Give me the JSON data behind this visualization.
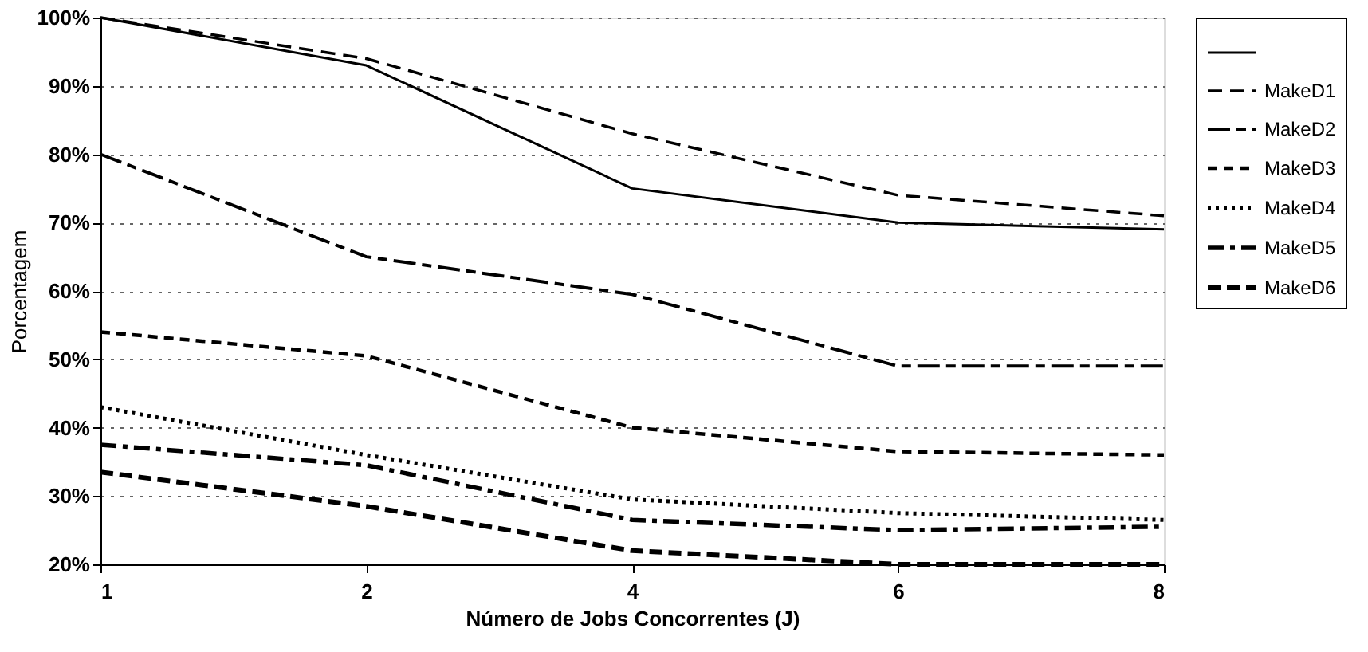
{
  "chart_data": {
    "type": "line",
    "xlabel": "Número de Jobs Concorrentes (J)",
    "ylabel": "Porcentagem",
    "categories": [
      "1",
      "2",
      "4",
      "6",
      "8"
    ],
    "ylim": [
      20,
      100
    ],
    "yticks": [
      {
        "value": 20,
        "label": "20%"
      },
      {
        "value": 30,
        "label": "30%"
      },
      {
        "value": 40,
        "label": "40%"
      },
      {
        "value": 50,
        "label": "50%"
      },
      {
        "value": 60,
        "label": "60%"
      },
      {
        "value": 70,
        "label": "70%"
      },
      {
        "value": 80,
        "label": "80%"
      },
      {
        "value": 90,
        "label": "90%"
      },
      {
        "value": 100,
        "label": "100%"
      }
    ],
    "grid": "y",
    "legend": "right",
    "marker": "none",
    "series": [
      {
        "color": "#000000",
        "line_style": "solid",
        "values": [
          100,
          93,
          75,
          70,
          69
        ]
      },
      {
        "name": "MakeD1",
        "color": "#000000",
        "line_style": "dashed",
        "values": [
          100,
          94,
          83,
          74,
          71
        ]
      },
      {
        "name": "MakeD2",
        "color": "#000000",
        "line_style": "dashed",
        "values": [
          80,
          65,
          59.5,
          49,
          49
        ]
      },
      {
        "name": "MakeD3",
        "color": "#000000",
        "line_style": "dashed",
        "values": [
          54,
          50.5,
          40,
          36.5,
          36
        ]
      },
      {
        "name": "MakeD4",
        "color": "#000000",
        "line_style": "dotted",
        "values": [
          43,
          36,
          29.5,
          27.5,
          26.5
        ]
      },
      {
        "name": "MakeD5",
        "color": "#000000",
        "line_style": "dashed",
        "values": [
          37.5,
          34.5,
          26.5,
          25,
          25.5
        ]
      },
      {
        "name": "MakeD6",
        "color": "#000000",
        "line_style": "dashed",
        "values": [
          33.5,
          28.5,
          22,
          20,
          20
        ]
      }
    ]
  }
}
